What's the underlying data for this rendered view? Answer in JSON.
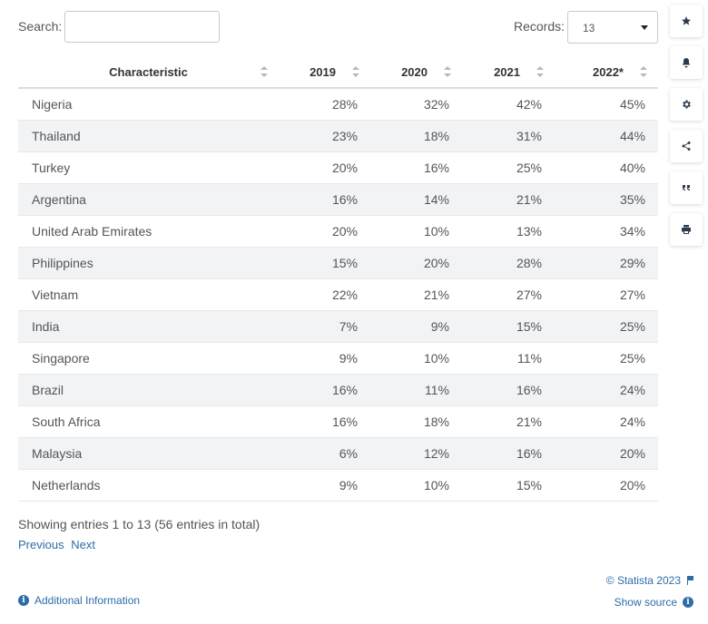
{
  "search": {
    "label": "Search:",
    "value": "",
    "placeholder": ""
  },
  "records": {
    "label": "Records:",
    "selected": "13"
  },
  "table": {
    "columns": [
      "Characteristic",
      "2019",
      "2020",
      "2021",
      "2022*"
    ],
    "rows": [
      [
        "Nigeria",
        "28%",
        "32%",
        "42%",
        "45%"
      ],
      [
        "Thailand",
        "23%",
        "18%",
        "31%",
        "44%"
      ],
      [
        "Turkey",
        "20%",
        "16%",
        "25%",
        "40%"
      ],
      [
        "Argentina",
        "16%",
        "14%",
        "21%",
        "35%"
      ],
      [
        "United Arab Emirates",
        "20%",
        "10%",
        "13%",
        "34%"
      ],
      [
        "Philippines",
        "15%",
        "20%",
        "28%",
        "29%"
      ],
      [
        "Vietnam",
        "22%",
        "21%",
        "27%",
        "27%"
      ],
      [
        "India",
        "7%",
        "9%",
        "15%",
        "25%"
      ],
      [
        "Singapore",
        "9%",
        "10%",
        "11%",
        "25%"
      ],
      [
        "Brazil",
        "16%",
        "11%",
        "16%",
        "24%"
      ],
      [
        "South Africa",
        "16%",
        "18%",
        "21%",
        "24%"
      ],
      [
        "Malaysia",
        "6%",
        "12%",
        "16%",
        "20%"
      ],
      [
        "Netherlands",
        "9%",
        "10%",
        "15%",
        "20%"
      ]
    ]
  },
  "footer": {
    "entries_info": "Showing entries 1 to 13 (56 entries in total)",
    "previous": "Previous",
    "next": "Next",
    "additional_info": "Additional Information",
    "copyright": "© Statista 2023",
    "show_source": "Show source"
  },
  "toolbar": {
    "icons": [
      "star-icon",
      "bell-icon",
      "gear-icon",
      "share-icon",
      "quote-icon",
      "print-icon"
    ]
  },
  "colors": {
    "link": "#2e6ca8",
    "stripe": "#f1f3f5",
    "icon": "#2b3a4f"
  }
}
